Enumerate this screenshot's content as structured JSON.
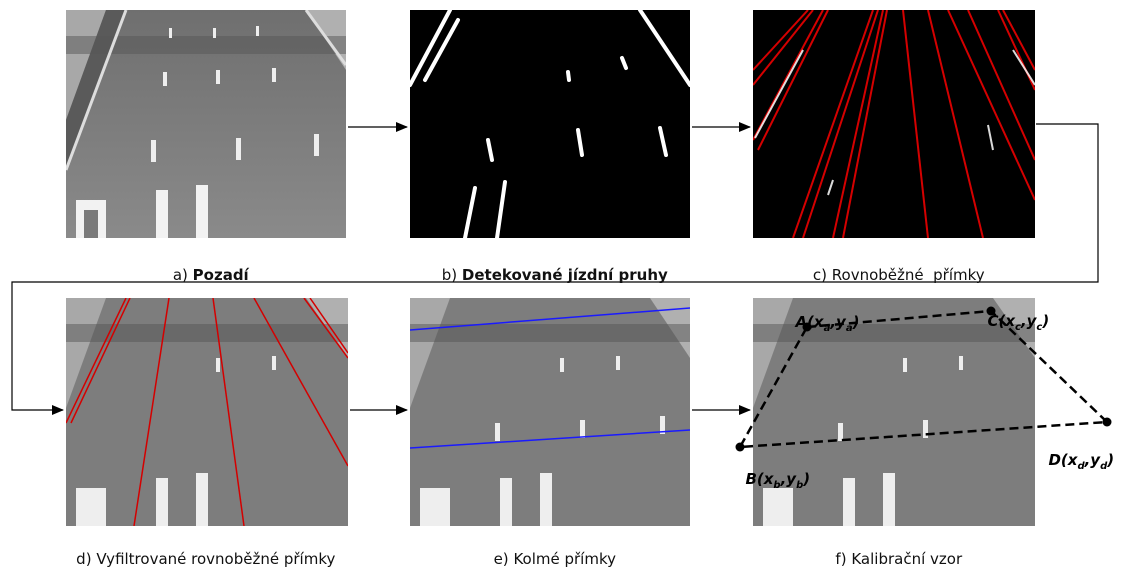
{
  "panels": [
    {
      "id": "a",
      "letter": "a)",
      "caption": "Pozadí",
      "bold": true
    },
    {
      "id": "b",
      "letter": "b)",
      "caption": "Detekované jízdní pruhy",
      "bold": true
    },
    {
      "id": "c",
      "letter": "c)",
      "caption": "Rovnoběžné  přímky",
      "bold": false
    },
    {
      "id": "d",
      "letter": "d)",
      "caption": "Vyfiltrované rovnoběžné přímky",
      "bold": false
    },
    {
      "id": "e",
      "letter": "e)",
      "caption": "Kolmé přímky",
      "bold": false
    },
    {
      "id": "f",
      "letter": "f)",
      "caption": "Kalibrační vzor",
      "bold": false
    }
  ],
  "points": [
    {
      "id": "A",
      "label": "A(x",
      "sub1": "a",
      "mid": ",y",
      "sub2": "a",
      "end": ")"
    },
    {
      "id": "C",
      "label": "C(x",
      "sub1": "c",
      "mid": ",y",
      "sub2": "c",
      "end": ")"
    },
    {
      "id": "B",
      "label": "B(x",
      "sub1": "b",
      "mid": ",y",
      "sub2": "b",
      "end": ")"
    },
    {
      "id": "D",
      "label": "D(x",
      "sub1": "d",
      "mid": ",y",
      "sub2": "d",
      "end": ")"
    }
  ],
  "colors": {
    "red_lines": "#d40000",
    "blue_lines": "#1a1aff",
    "road": "#7a7a7a",
    "arrow": "#000000"
  }
}
